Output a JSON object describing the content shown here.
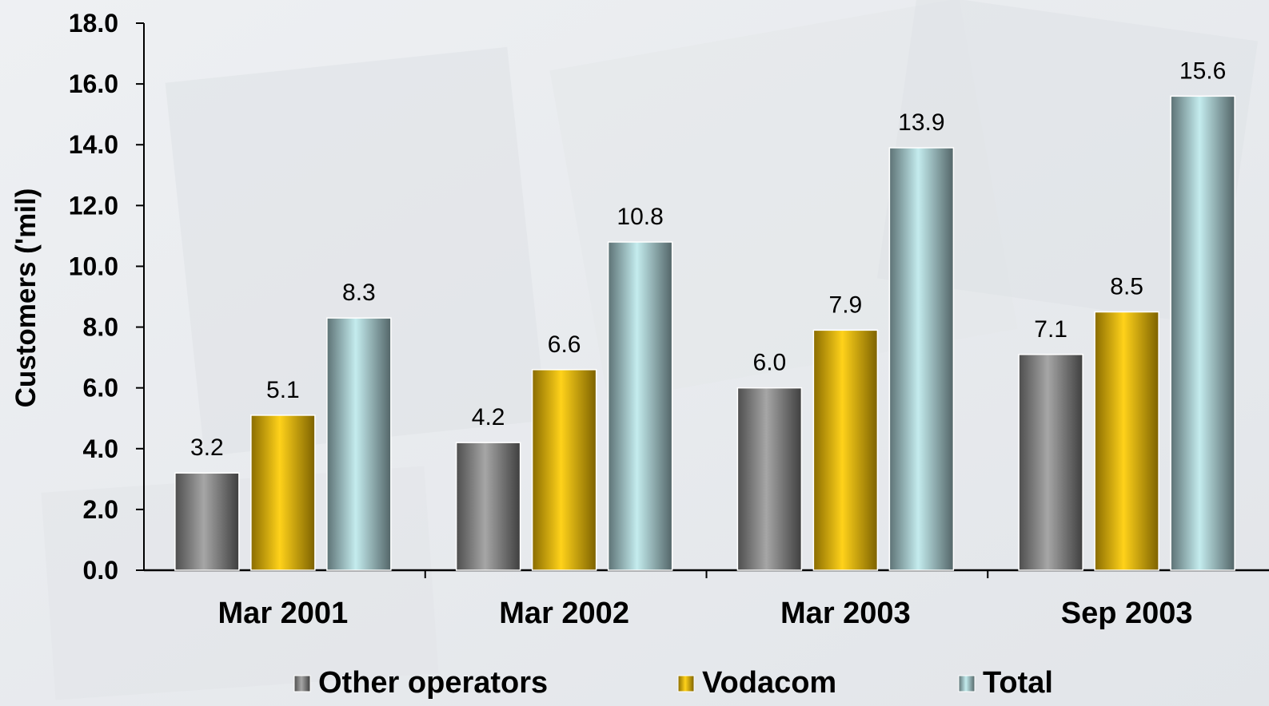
{
  "chart_data": {
    "type": "bar",
    "ylabel": "Customers ('mil)",
    "xlabel": "",
    "ylim": [
      0,
      18
    ],
    "yticks": [
      "0.0",
      "2.0",
      "4.0",
      "6.0",
      "8.0",
      "10.0",
      "12.0",
      "14.0",
      "16.0",
      "18.0"
    ],
    "categories": [
      "Mar 2001",
      "Mar 2002",
      "Mar 2003",
      "Sep 2003"
    ],
    "series": [
      {
        "name": "Other operators",
        "values": [
          3.2,
          4.2,
          6.0,
          7.1
        ],
        "labels": [
          "3.2",
          "4.2",
          "6.0",
          "7.1"
        ],
        "color": "#8c8c8c"
      },
      {
        "name": "Vodacom",
        "values": [
          5.1,
          6.6,
          7.9,
          8.5
        ],
        "labels": [
          "5.1",
          "6.6",
          "7.9",
          "8.5"
        ],
        "color": "#f6c800"
      },
      {
        "name": "Total",
        "values": [
          8.3,
          10.8,
          13.9,
          15.6
        ],
        "labels": [
          "8.3",
          "10.8",
          "13.9",
          "15.6"
        ],
        "color": "#a9d3d6"
      }
    ],
    "grid": false,
    "legend_position": "bottom"
  }
}
